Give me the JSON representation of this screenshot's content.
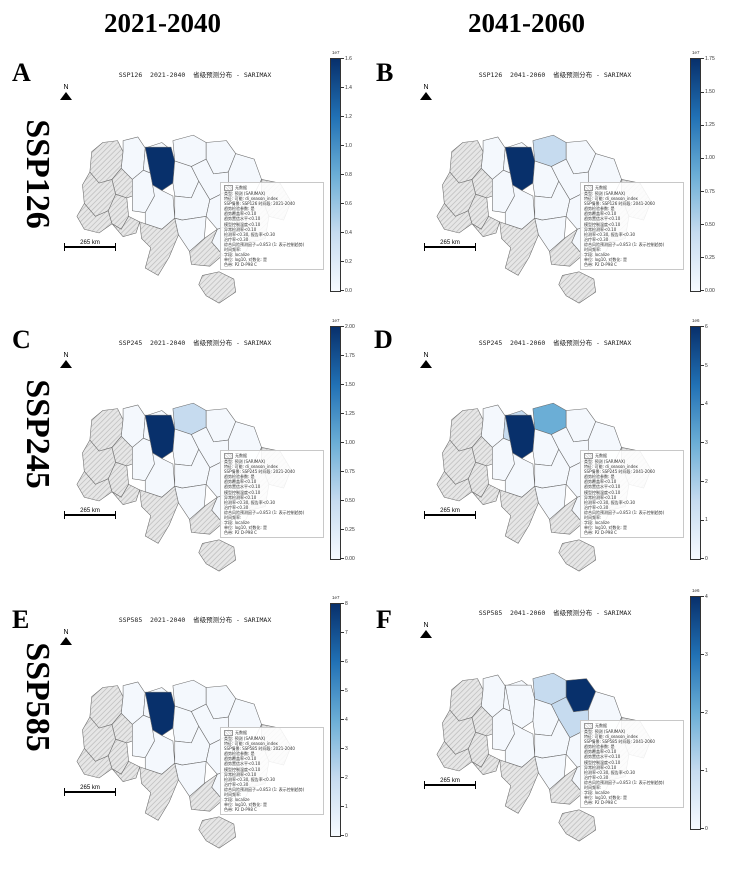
{
  "column_headers": [
    "2021-2040",
    "2041-2060"
  ],
  "row_labels": [
    "SSP126",
    "SSP245",
    "SSP585"
  ],
  "colors": {
    "region_fill_low": "#f4f8fd",
    "region_highlight_dark": "#08306b",
    "region_highlight_light": "#c6dbef",
    "region_border": "#6a6a6a",
    "hatch": "#bdbdbd"
  },
  "panels": [
    {
      "letter": "A",
      "title": "SSP126  2021-2040  省级预测分布 - SARIMAX",
      "north": "N",
      "scale": "265 km",
      "legend_title": "无数据",
      "info_lines": [
        "类型: 预测 (SARIMAX)",
        "特征: 可能: di_season_index",
        "SSP情景: SSP126  时间段: 2021-2040",
        "趋势检验参数: 是",
        "趋势覆盖率<0.10",
        "趋势置信水平<0.10",
        "模型控制温度<0.10",
        "异常检测率<0.10",
        "检测率<0.30, 报告率<0.30",
        "治疗率<0.30",
        "综合风险预测因子=0.853 (1: 表示控制趋势)",
        "时间频率:",
        "字段: localize",
        "单位: log10, 对数化: 是",
        "色带: P2 D-P98 C"
      ],
      "colorbar": {
        "exp": "1e7",
        "ticks": [
          "1.6",
          "1.4",
          "1.2",
          "1.0",
          "0.8",
          "0.6",
          "0.4",
          "0.2",
          "0.0"
        ]
      },
      "highlights": [
        {
          "region": "kyiv",
          "level": "dark"
        }
      ]
    },
    {
      "letter": "B",
      "title": "SSP126  2041-2060  省级预测分布 - SARIMAX",
      "north": "N",
      "scale": "265 km",
      "legend_title": "无数据",
      "info_lines": [
        "类型: 预测 (SARIMAX)",
        "特征: 可能: di_season_index",
        "SSP情景: SSP126  时间段: 2041-2060",
        "趋势检验参数: 是",
        "趋势覆盖率<0.10",
        "趋势置信水平<0.10",
        "模型控制温度<0.10",
        "异常检测率<0.10",
        "检测率<0.30, 报告率<0.30",
        "治疗率<0.30",
        "综合风险预测因子=0.853 (1: 表示控制趋势)",
        "时间频率:",
        "字段: localize",
        "单位: log10, 对数化: 是",
        "色带: P2 D-P98 C"
      ],
      "colorbar": {
        "exp": "1e7",
        "ticks": [
          "1.75",
          "1.50",
          "1.25",
          "1.00",
          "0.75",
          "0.50",
          "0.25",
          "0.00"
        ]
      },
      "highlights": [
        {
          "region": "kyiv",
          "level": "dark"
        },
        {
          "region": "chernihiv",
          "level": "light"
        }
      ]
    },
    {
      "letter": "C",
      "title": "SSP245  2021-2040  省级预测分布 - SARIMAX",
      "north": "N",
      "scale": "265 km",
      "legend_title": "无数据",
      "info_lines": [
        "类型: 预测 (SARIMAX)",
        "特征: 可能: di_season_index",
        "SSP情景: SSP245  时间段: 2021-2040",
        "趋势检验参数: 是",
        "趋势覆盖率<0.10",
        "趋势置信水平<0.10",
        "模型控制温度<0.10",
        "异常检测率<0.10",
        "检测率<0.30, 报告率<0.30",
        "治疗率<0.30",
        "综合风险预测因子=0.853 (1: 表示控制趋势)",
        "时间频率:",
        "字段: localize",
        "单位: log10, 对数化: 是",
        "色带: P2 D-P98 C"
      ],
      "colorbar": {
        "exp": "1e7",
        "ticks": [
          "2.00",
          "1.75",
          "1.50",
          "1.25",
          "1.00",
          "0.75",
          "0.50",
          "0.25",
          "0.00"
        ]
      },
      "highlights": [
        {
          "region": "kyiv",
          "level": "dark"
        },
        {
          "region": "chernihiv",
          "level": "light"
        }
      ]
    },
    {
      "letter": "D",
      "title": "SSP245  2041-2060  省级预测分布 - SARIMAX",
      "north": "N",
      "scale": "265 km",
      "legend_title": "无数据",
      "info_lines": [
        "类型: 预测 (SARIMAX)",
        "特征: 可能: di_season_index",
        "SSP情景: SSP245  时间段: 2041-2060",
        "趋势检验参数: 是",
        "趋势覆盖率<0.10",
        "趋势置信水平<0.10",
        "模型控制温度<0.10",
        "异常检测率<0.10",
        "检测率<0.30, 报告率<0.30",
        "治疗率<0.30",
        "综合风险预测因子=0.853 (1: 表示控制趋势)",
        "时间频率:",
        "字段: localize",
        "单位: log10, 对数化: 是",
        "色带: P2 D-P98 C"
      ],
      "colorbar": {
        "exp": "1e6",
        "ticks": [
          "6",
          "5",
          "4",
          "3",
          "2",
          "1",
          "0"
        ]
      },
      "highlights": [
        {
          "region": "kyiv",
          "level": "dark"
        },
        {
          "region": "zhytomyr",
          "level": "light"
        },
        {
          "region": "chernihiv",
          "level": "mid"
        }
      ]
    },
    {
      "letter": "E",
      "title": "SSP585  2021-2040  省级预测分布 - SARIMAX",
      "north": "N",
      "scale": "265 km",
      "legend_title": "无数据",
      "info_lines": [
        "类型: 预测 (SARIMAX)",
        "特征: 可能: di_season_index",
        "SSP情景: SSP585  时间段: 2021-2040",
        "趋势检验参数: 是",
        "趋势覆盖率<0.10",
        "趋势置信水平<0.10",
        "模型控制温度<0.10",
        "异常检测率<0.10",
        "检测率<0.30, 报告率<0.30",
        "治疗率<0.30",
        "综合风险预测因子=0.853 (1: 表示控制趋势)",
        "时间频率:",
        "字段: localize",
        "单位: log10, 对数化: 是",
        "色带: P2 D-P98 C"
      ],
      "colorbar": {
        "exp": "1e7",
        "ticks": [
          "8",
          "7",
          "6",
          "5",
          "4",
          "3",
          "2",
          "1",
          "0"
        ]
      },
      "highlights": [
        {
          "region": "kyiv",
          "level": "dark"
        }
      ]
    },
    {
      "letter": "F",
      "title": "SSP585  2041-2060  省级预测分布 - SARIMAX",
      "north": "N",
      "scale": "265 km",
      "legend_title": "无数据",
      "info_lines": [
        "类型: 预测 (SARIMAX)",
        "特征: 可能: di_season_index",
        "SSP情景: SSP585  时间段: 2041-2060",
        "趋势检验参数: 是",
        "趋势覆盖率<0.10",
        "趋势置信水平<0.10",
        "模型控制温度<0.10",
        "异常检测率<0.10",
        "检测率<0.30, 报告率<0.30",
        "治疗率<0.30",
        "综合风险预测因子=0.853 (1: 表示控制趋势)",
        "时间频率:",
        "字段: localize",
        "单位: log10, 对数化: 是",
        "色带: P2 D-P98 C"
      ],
      "colorbar": {
        "exp": "1e6",
        "ticks": [
          "4",
          "3",
          "2",
          "1",
          "0"
        ]
      },
      "highlights": [
        {
          "region": "sumy",
          "level": "dark"
        },
        {
          "region": "poltava",
          "level": "light"
        },
        {
          "region": "chernihiv",
          "level": "light"
        }
      ]
    }
  ]
}
